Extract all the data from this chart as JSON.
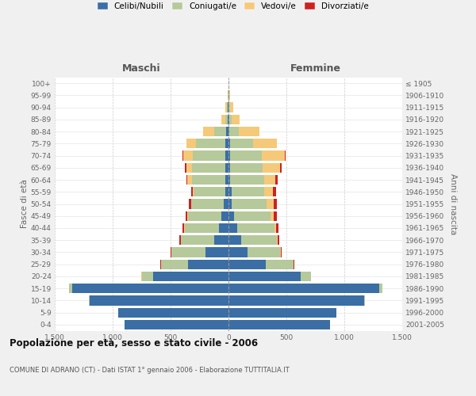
{
  "age_groups": [
    "0-4",
    "5-9",
    "10-14",
    "15-19",
    "20-24",
    "25-29",
    "30-34",
    "35-39",
    "40-44",
    "45-49",
    "50-54",
    "55-59",
    "60-64",
    "65-69",
    "70-74",
    "75-79",
    "80-84",
    "85-89",
    "90-94",
    "95-99",
    "100+"
  ],
  "birth_years": [
    "2001-2005",
    "1996-2000",
    "1991-1995",
    "1986-1990",
    "1981-1985",
    "1976-1980",
    "1971-1975",
    "1966-1970",
    "1961-1965",
    "1956-1960",
    "1951-1955",
    "1946-1950",
    "1941-1945",
    "1936-1940",
    "1931-1935",
    "1926-1930",
    "1921-1925",
    "1916-1920",
    "1911-1915",
    "1906-1910",
    "≤ 1905"
  ],
  "colors": {
    "celibe": "#3a6ea5",
    "coniugato": "#b5c99a",
    "vedovo": "#f5c97a",
    "divorziato": "#cc2222"
  },
  "maschi": {
    "celibe": [
      900,
      950,
      1200,
      1350,
      650,
      350,
      200,
      120,
      80,
      60,
      40,
      30,
      25,
      25,
      30,
      30,
      20,
      10,
      5,
      2,
      0
    ],
    "coniugato": [
      0,
      2,
      5,
      30,
      100,
      230,
      290,
      290,
      300,
      290,
      280,
      270,
      290,
      290,
      280,
      250,
      100,
      20,
      10,
      3,
      0
    ],
    "vedovo": [
      0,
      0,
      0,
      0,
      2,
      2,
      2,
      2,
      3,
      3,
      5,
      10,
      40,
      50,
      80,
      80,
      100,
      30,
      15,
      5,
      0
    ],
    "divorziato": [
      0,
      0,
      0,
      0,
      2,
      5,
      10,
      15,
      15,
      20,
      20,
      15,
      10,
      10,
      10,
      5,
      0,
      0,
      0,
      0,
      0
    ]
  },
  "femmine": {
    "nubile": [
      880,
      930,
      1170,
      1300,
      620,
      320,
      165,
      110,
      75,
      50,
      30,
      25,
      15,
      15,
      15,
      15,
      10,
      5,
      3,
      2,
      0
    ],
    "coniugata": [
      0,
      2,
      5,
      30,
      90,
      240,
      280,
      305,
      320,
      310,
      300,
      280,
      290,
      280,
      270,
      200,
      80,
      20,
      8,
      3,
      0
    ],
    "vedova": [
      0,
      0,
      0,
      0,
      2,
      3,
      5,
      10,
      15,
      30,
      60,
      80,
      100,
      150,
      200,
      200,
      180,
      70,
      30,
      8,
      0
    ],
    "divorziata": [
      0,
      0,
      0,
      0,
      2,
      5,
      10,
      15,
      20,
      25,
      30,
      25,
      20,
      15,
      10,
      5,
      0,
      0,
      0,
      0,
      0
    ]
  },
  "xlim": 1500,
  "title": "Popolazione per età, sesso e stato civile - 2006",
  "subtitle": "COMUNE DI ADRANO (CT) - Dati ISTAT 1° gennaio 2006 - Elaborazione TUTTITALIA.IT",
  "ylabel_left": "Fasce di età",
  "ylabel_right": "Anni di nascita",
  "xtick_vals": [
    -1500,
    -1000,
    -500,
    0,
    500,
    1000,
    1500
  ],
  "xtick_labels": [
    "1.500",
    "1.000",
    "500",
    "0",
    "500",
    "1.000",
    "1.500"
  ],
  "bg_color": "#f0f0f0",
  "plot_bg": "#ffffff",
  "legend_items": [
    "Celibi/Nubili",
    "Coniugati/e",
    "Vedovi/e",
    "Divorziati/e"
  ],
  "header_maschi": "Maschi",
  "header_femmine": "Femmine"
}
